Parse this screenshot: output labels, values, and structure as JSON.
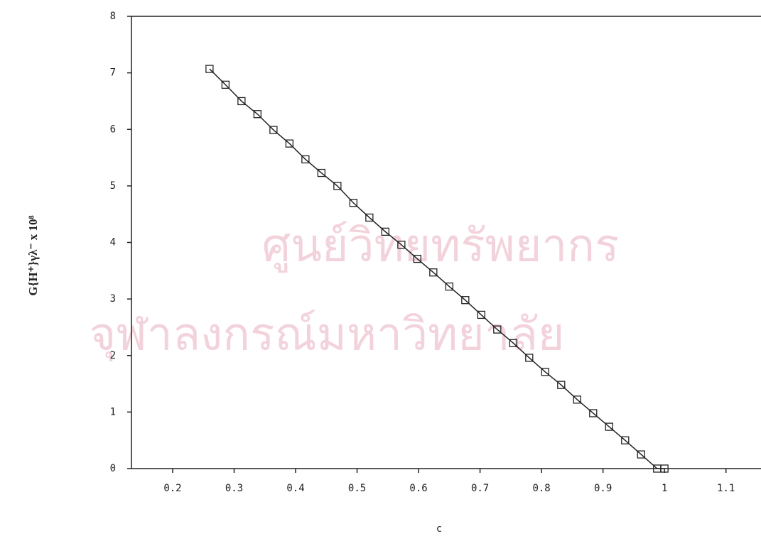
{
  "chart_data": {
    "type": "line",
    "watermark": [
      "ศูนย์วิทยทรัพยากร",
      "จุฬาลงกรณ์มหาวิทยาลัย"
    ],
    "xlabel": "c",
    "ylabel": "G{H⁺}γλ⁻ x 10⁸",
    "x": [
      0.26,
      0.286,
      0.312,
      0.338,
      0.364,
      0.39,
      0.416,
      0.442,
      0.468,
      0.494,
      0.52,
      0.546,
      0.572,
      0.598,
      0.624,
      0.65,
      0.676,
      0.702,
      0.728,
      0.754,
      0.78,
      0.806,
      0.832,
      0.858,
      0.884,
      0.91,
      0.936,
      0.962,
      0.988,
      1.0
    ],
    "series": [
      {
        "color": "#222222",
        "marker": "square",
        "values": [
          7.07,
          6.79,
          6.5,
          6.27,
          5.99,
          5.75,
          5.47,
          5.23,
          5.0,
          4.7,
          4.44,
          4.19,
          3.96,
          3.71,
          3.47,
          3.22,
          2.98,
          2.72,
          2.46,
          2.22,
          1.96,
          1.71,
          1.48,
          1.22,
          0.98,
          0.74,
          0.5,
          0.25,
          0,
          0
        ]
      }
    ],
    "xlim": [
      0.133,
      1.157
    ],
    "ylim": [
      0,
      8
    ],
    "xticks": [
      0.2,
      0.3,
      0.4,
      0.5,
      0.6,
      0.7,
      0.8,
      0.9,
      1,
      1.1
    ],
    "yticks": [
      0,
      1,
      2,
      3,
      4,
      5,
      6,
      7,
      8
    ]
  }
}
